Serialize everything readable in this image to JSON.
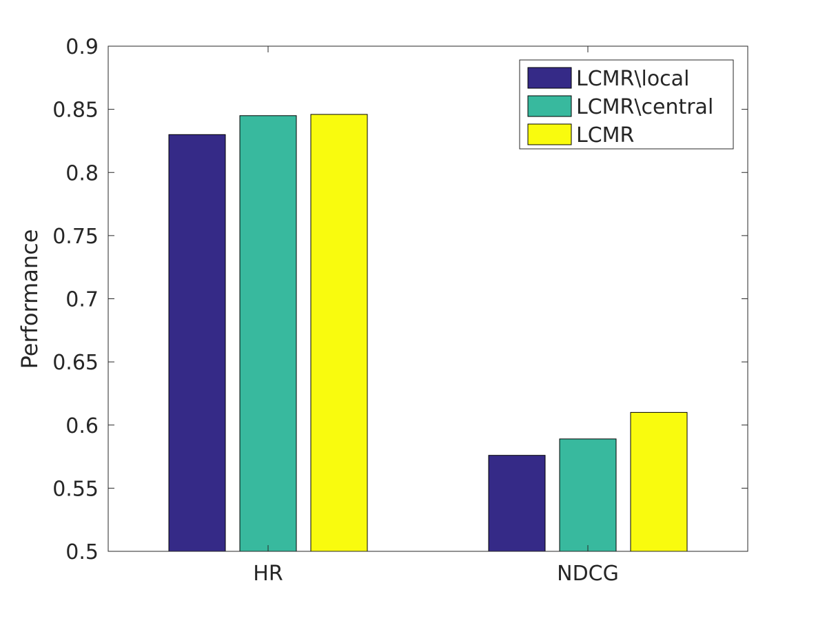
{
  "chart_data": {
    "type": "bar",
    "title": "",
    "xlabel": "",
    "ylabel": "Performance",
    "categories": [
      "HR",
      "NDCG"
    ],
    "series": [
      {
        "name": "LCMR\\local",
        "values": [
          0.83,
          0.576
        ],
        "color": "#352a87"
      },
      {
        "name": "LCMR\\central",
        "values": [
          0.845,
          0.589
        ],
        "color": "#38b99e"
      },
      {
        "name": "LCMR",
        "values": [
          0.846,
          0.61
        ],
        "color": "#f9fb0e"
      }
    ],
    "ylim": [
      0.5,
      0.9
    ],
    "yticks": [
      0.5,
      0.55,
      0.6,
      0.65,
      0.7,
      0.75,
      0.8,
      0.85,
      0.9
    ],
    "ytick_labels": [
      "0.5",
      "0.55",
      "0.6",
      "0.65",
      "0.7",
      "0.75",
      "0.8",
      "0.85",
      "0.9"
    ],
    "grid": false,
    "legend_position": "top-right"
  }
}
